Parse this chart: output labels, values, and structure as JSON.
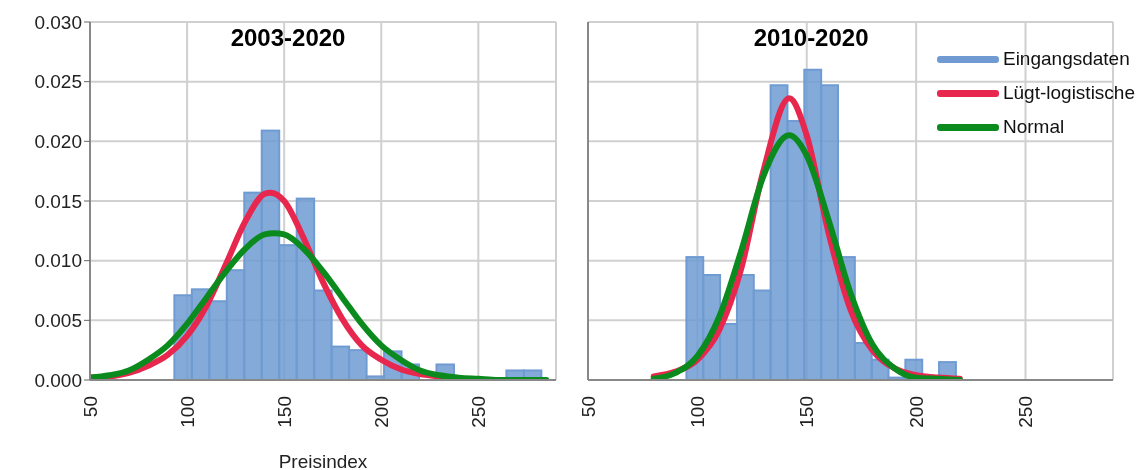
{
  "chart_data": [
    {
      "type": "histogram",
      "title": "2003-2020",
      "xlabel": "Preisindex",
      "xlim": [
        50,
        290
      ],
      "xticks": [
        50,
        100,
        150,
        200,
        250
      ],
      "ylim": [
        0,
        0.03
      ],
      "yticks": [
        {
          "value": 0,
          "label": "0.000"
        },
        {
          "value": 0.005,
          "label": "0.005"
        },
        {
          "value": 0.01,
          "label": "0.010"
        },
        {
          "value": 0.015,
          "label": "0.015"
        },
        {
          "value": 0.02,
          "label": "0.020"
        },
        {
          "value": 0.025,
          "label": "0.025"
        },
        {
          "value": 0.03,
          "label": "0.030"
        }
      ],
      "grid": true,
      "legend": false,
      "series": [
        {
          "color": "#6f9bd2",
          "bins": [
            93.5,
            102.5,
            111.5,
            120.5,
            129.5,
            138.5,
            147.5,
            156.5,
            165.5,
            174.5,
            183.5,
            192.5,
            201.5,
            210.5,
            219.5,
            228.5,
            237.5,
            246.5,
            255.5,
            264.5,
            273.5,
            282.5
          ],
          "values": [
            0.0071,
            0.0076,
            0.0066,
            0.0092,
            0.0157,
            0.0209,
            0.0113,
            0.0152,
            0.0075,
            0.0028,
            0.0025,
            0.0003,
            0.0024,
            0.0013,
            0,
            0.0013,
            0,
            0,
            0,
            0.0008,
            0.0008
          ]
        },
        {
          "type": "line",
          "color": "#e8274f",
          "x": [
            50,
            60,
            70,
            80,
            90,
            100,
            110,
            120,
            130,
            140,
            143,
            150,
            160,
            170,
            180,
            190,
            200,
            210,
            220,
            230,
            240
          ],
          "values": [
            0.0002,
            0.0003,
            0.0006,
            0.0012,
            0.0021,
            0.0037,
            0.0062,
            0.0097,
            0.0133,
            0.0156,
            0.0157,
            0.015,
            0.0119,
            0.0082,
            0.0051,
            0.0029,
            0.0017,
            0.0009,
            0.0005,
            0.0003,
            0.0001
          ]
        },
        {
          "type": "line",
          "color": "#0b8a1e",
          "x": [
            50,
            60,
            70,
            80,
            90,
            100,
            110,
            120,
            130,
            140,
            145,
            150,
            160,
            170,
            180,
            190,
            200,
            210,
            220,
            230,
            240,
            250,
            260,
            285
          ],
          "values": [
            0.0002,
            0.0004,
            0.0008,
            0.0017,
            0.0029,
            0.0047,
            0.0069,
            0.0091,
            0.011,
            0.0122,
            0.0123,
            0.0122,
            0.011,
            0.0091,
            0.0069,
            0.0047,
            0.0029,
            0.0017,
            0.0008,
            0.0004,
            0.0002,
            0.0001,
            0,
            0
          ]
        }
      ]
    },
    {
      "type": "histogram",
      "title": "2010-2020",
      "xlim": [
        50,
        290
      ],
      "xticks": [
        50,
        100,
        150,
        200,
        250
      ],
      "ylim": [
        0,
        0.03
      ],
      "yticks": [
        0.005,
        0.01,
        0.015,
        0.02,
        0.025,
        0.03
      ],
      "tick_labels": "x",
      "grid": true,
      "legend": "top right",
      "series": [
        {
          "name": "Eingangsdaten",
          "color": "#6f9bd2",
          "bins": [
            95,
            102.7,
            110.4,
            118.1,
            125.8,
            133.5,
            141.2,
            148.9,
            156.6,
            164.3,
            172,
            179.7,
            187.4,
            195.1,
            202.8,
            210.5,
            218.2
          ],
          "values": [
            0.0103,
            0.0088,
            0.0047,
            0.0088,
            0.0075,
            0.0247,
            0.0217,
            0.026,
            0.0247,
            0.0103,
            0.0031,
            0.0017,
            0.0002,
            0.0017,
            0,
            0.0015
          ]
        },
        {
          "name": "Lügt-logistische",
          "type": "line",
          "color": "#e8274f",
          "x": [
            80,
            90,
            100,
            110,
            120,
            130,
            142,
            150,
            160,
            170,
            180,
            190,
            200,
            210,
            220
          ],
          "values": [
            0.0003,
            0.0007,
            0.0017,
            0.0042,
            0.0093,
            0.0174,
            0.0236,
            0.0205,
            0.0123,
            0.0059,
            0.0025,
            0.001,
            0.0004,
            0.0002,
            0.0001
          ]
        },
        {
          "name": "Normal",
          "type": "line",
          "color": "#0b8a1e",
          "x": [
            80,
            90,
            100,
            110,
            120,
            130,
            142,
            150,
            160,
            170,
            180,
            190,
            200,
            210,
            220
          ],
          "values": [
            0.0001,
            0.0006,
            0.002,
            0.0053,
            0.0108,
            0.017,
            0.0205,
            0.0188,
            0.0134,
            0.0073,
            0.003,
            0.001,
            0.0002,
            0.0001,
            0
          ]
        }
      ]
    }
  ]
}
